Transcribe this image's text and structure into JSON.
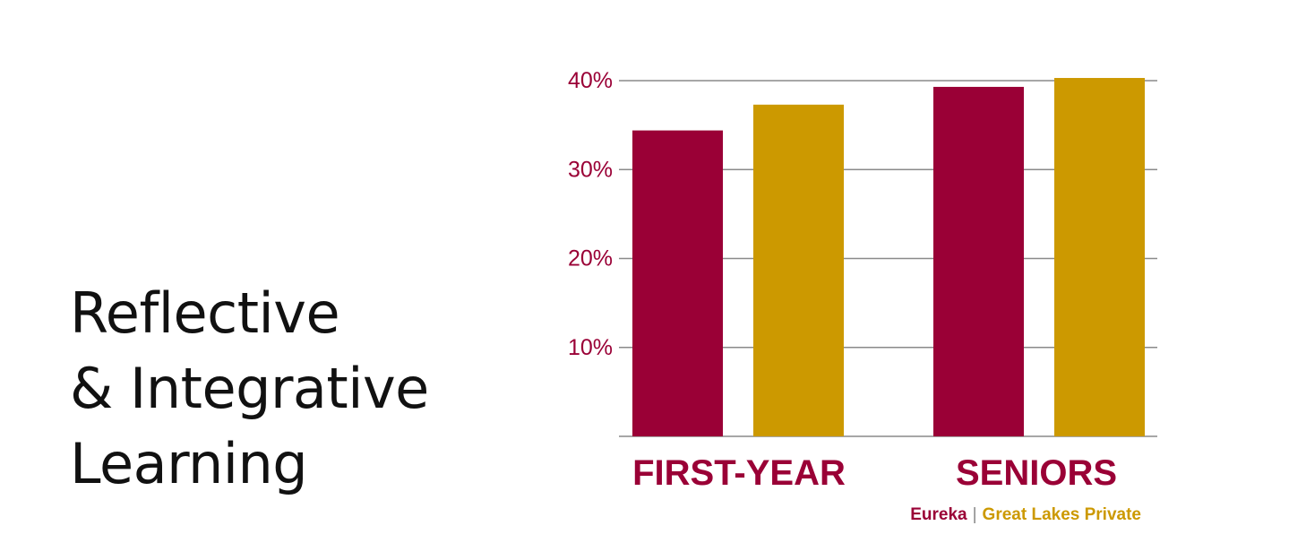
{
  "title_lines": [
    "Reflective",
    "& Integrative",
    "Learning"
  ],
  "colors": {
    "series_1": "#9a0036",
    "series_2": "#cc9900",
    "grid": "#8a8a8a",
    "category_label": "#9a0036",
    "legend_separator": "#888888"
  },
  "chart_data": {
    "type": "bar",
    "categories": [
      "FIRST-YEAR",
      "SENIORS"
    ],
    "series": [
      {
        "name": "Eureka",
        "values": [
          34.4,
          39.3
        ]
      },
      {
        "name": "Great Lakes Private",
        "values": [
          37.3,
          40.3
        ]
      }
    ],
    "y_ticks": [
      10,
      20,
      30,
      40
    ],
    "y_tick_labels": [
      "10%",
      "20%",
      "30%",
      "40%"
    ],
    "ylim": [
      0,
      40
    ],
    "grid": true,
    "legend_position": "bottom-right",
    "legend_separator": "|"
  }
}
